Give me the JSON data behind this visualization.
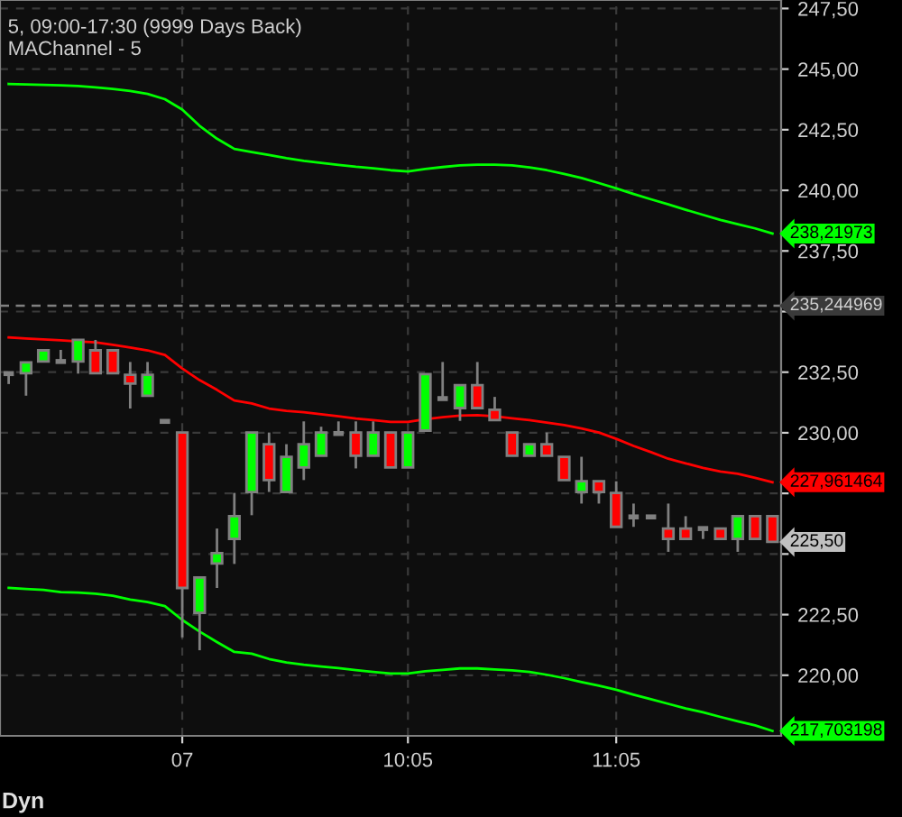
{
  "chart_data": {
    "type": "candlestick",
    "title": "5, 09:00-17:30 (9999 Days Back)",
    "subtitle": "MAChannel - 5",
    "categories": [
      null,
      null,
      null,
      null,
      null,
      null,
      null,
      null,
      null,
      null,
      "07",
      null,
      null,
      null,
      null,
      null,
      null,
      null,
      null,
      null,
      null,
      null,
      null,
      "10:05",
      null,
      null,
      null,
      null,
      null,
      null,
      null,
      null,
      null,
      null,
      null,
      "11:05",
      null,
      null,
      null,
      null,
      null,
      null,
      null,
      null,
      null
    ],
    "ohlc": [
      [
        232.44,
        232.44,
        232.01,
        232.44
      ],
      [
        232.46,
        232.9,
        231.53,
        232.9
      ],
      [
        232.94,
        233.4,
        232.94,
        233.4
      ],
      [
        232.94,
        233.42,
        232.94,
        232.94
      ],
      [
        232.94,
        233.83,
        232.44,
        233.83
      ],
      [
        233.4,
        233.83,
        232.46,
        232.46
      ],
      [
        233.4,
        233.4,
        232.46,
        232.46
      ],
      [
        232.39,
        232.92,
        231.0,
        232.03
      ],
      [
        231.53,
        232.92,
        231.53,
        232.39
      ],
      [
        230.47,
        230.47,
        230.47,
        230.47
      ],
      [
        230.01,
        230.01,
        221.56,
        223.6
      ],
      [
        222.57,
        224.03,
        221.03,
        224.03
      ],
      [
        224.61,
        226.05,
        223.6,
        225.04
      ],
      [
        225.62,
        227.52,
        224.59,
        226.56
      ],
      [
        227.56,
        230.01,
        226.6,
        230.01
      ],
      [
        229.53,
        230.01,
        227.56,
        228.05
      ],
      [
        227.56,
        229.53,
        227.56,
        229.01
      ],
      [
        228.57,
        230.47,
        228.05,
        229.53
      ],
      [
        229.05,
        230.25,
        229.05,
        230.01
      ],
      [
        229.97,
        230.47,
        229.97,
        229.97
      ],
      [
        230.01,
        230.47,
        228.53,
        229.05
      ],
      [
        229.05,
        230.47,
        229.05,
        230.01
      ],
      [
        230.01,
        230.01,
        228.57,
        228.57
      ],
      [
        228.57,
        230.01,
        228.57,
        230.01
      ],
      [
        230.09,
        232.42,
        230.09,
        232.42
      ],
      [
        231.41,
        232.92,
        231.41,
        231.41
      ],
      [
        231.02,
        231.96,
        230.49,
        231.96
      ],
      [
        231.96,
        232.92,
        231.02,
        231.02
      ],
      [
        230.95,
        231.48,
        230.52,
        230.52
      ],
      [
        230.01,
        230.01,
        229.05,
        229.05
      ],
      [
        229.05,
        229.53,
        229.05,
        229.53
      ],
      [
        229.53,
        230.01,
        229.05,
        229.05
      ],
      [
        229.01,
        229.01,
        228.05,
        228.05
      ],
      [
        227.56,
        229.01,
        227.08,
        228.0
      ],
      [
        228.0,
        228.0,
        227.08,
        227.56
      ],
      [
        227.52,
        228.0,
        226.12,
        226.12
      ],
      [
        226.53,
        227.08,
        226.12,
        226.53
      ],
      [
        226.53,
        226.53,
        226.53,
        226.53
      ],
      [
        226.05,
        227.08,
        225.09,
        225.62
      ],
      [
        226.05,
        226.56,
        225.62,
        225.62
      ],
      [
        226.05,
        226.05,
        225.62,
        226.05
      ],
      [
        226.05,
        226.05,
        225.62,
        225.62
      ],
      [
        225.62,
        226.56,
        225.09,
        226.56
      ],
      [
        226.56,
        226.56,
        225.62,
        225.62
      ],
      [
        226.56,
        226.56,
        225.5,
        225.5
      ]
    ],
    "colors": [
      "#808080",
      "#00ff00",
      "#00ff00",
      "#808080",
      "#00ff00",
      "#ff0000",
      "#ff0000",
      "#ff0000",
      "#00ff00",
      "#808080",
      "#ff0000",
      "#00ff00",
      "#00ff00",
      "#00ff00",
      "#00ff00",
      "#ff0000",
      "#00ff00",
      "#00ff00",
      "#00ff00",
      "#808080",
      "#ff0000",
      "#00ff00",
      "#ff0000",
      "#00ff00",
      "#00ff00",
      "#808080",
      "#00ff00",
      "#ff0000",
      "#ff0000",
      "#ff0000",
      "#00ff00",
      "#ff0000",
      "#ff0000",
      "#00ff00",
      "#ff0000",
      "#ff0000",
      "#808080",
      "#808080",
      "#ff0000",
      "#ff0000",
      "#808080",
      "#ff0000",
      "#00ff00",
      "#ff0000",
      "#ff0000"
    ],
    "series": [
      {
        "type": "line",
        "color": "#00ff00",
        "values": [
          244.39,
          244.37,
          244.35,
          244.33,
          244.3,
          244.25,
          244.18,
          244.1,
          243.98,
          243.76,
          243.33,
          242.66,
          242.13,
          241.71,
          241.58,
          241.46,
          241.33,
          241.22,
          241.13,
          241.05,
          240.97,
          240.91,
          240.83,
          240.78,
          240.88,
          240.96,
          241.03,
          241.06,
          241.06,
          241.03,
          240.95,
          240.83,
          240.68,
          240.51,
          240.3,
          240.08,
          239.85,
          239.63,
          239.42,
          239.2,
          238.99,
          238.78,
          238.6,
          238.43,
          238.21973
        ],
        "value_labels": [
          null,
          null,
          null,
          null,
          null,
          null,
          null,
          null,
          null,
          null,
          null,
          null,
          null,
          null,
          null,
          null,
          null,
          null,
          null,
          null,
          null,
          null,
          null,
          null,
          null,
          null,
          null,
          null,
          null,
          null,
          null,
          null,
          null,
          null,
          null,
          null,
          null,
          null,
          null,
          null,
          null,
          null,
          null,
          null,
          "238,21973"
        ]
      },
      {
        "type": "line",
        "color": "#ff0000",
        "values": [
          233.93,
          233.89,
          233.85,
          233.81,
          233.77,
          233.73,
          233.63,
          233.52,
          233.4,
          233.21,
          232.65,
          232.17,
          231.77,
          231.33,
          231.21,
          231.0,
          230.9,
          230.85,
          230.76,
          230.68,
          230.59,
          230.52,
          230.45,
          230.45,
          230.56,
          230.64,
          230.71,
          230.73,
          230.68,
          230.6,
          230.52,
          230.42,
          230.32,
          230.18,
          230.01,
          229.75,
          229.46,
          229.2,
          228.93,
          228.74,
          228.55,
          228.4,
          228.31,
          228.14,
          227.961464
        ],
        "value_labels": [
          null,
          null,
          null,
          null,
          null,
          null,
          null,
          null,
          null,
          null,
          null,
          null,
          null,
          null,
          null,
          null,
          null,
          null,
          null,
          null,
          null,
          null,
          null,
          null,
          null,
          null,
          null,
          null,
          null,
          null,
          null,
          null,
          null,
          null,
          null,
          null,
          null,
          null,
          null,
          null,
          null,
          null,
          null,
          null,
          "227,961464"
        ]
      },
      {
        "type": "line",
        "color": "#00ff00",
        "values": [
          223.6,
          223.56,
          223.52,
          223.43,
          223.41,
          223.36,
          223.28,
          223.12,
          223.02,
          222.85,
          222.28,
          221.8,
          221.37,
          220.96,
          220.89,
          220.67,
          220.53,
          220.43,
          220.36,
          220.29,
          220.21,
          220.14,
          220.07,
          220.07,
          220.16,
          220.22,
          220.28,
          220.28,
          220.24,
          220.2,
          220.14,
          220.02,
          219.88,
          219.72,
          219.57,
          219.4,
          219.2,
          219.01,
          218.82,
          218.63,
          218.47,
          218.28,
          218.1,
          217.93,
          217.703198
        ],
        "value_labels": [
          null,
          null,
          null,
          null,
          null,
          null,
          null,
          null,
          null,
          null,
          null,
          null,
          null,
          null,
          null,
          null,
          null,
          null,
          null,
          null,
          null,
          null,
          null,
          null,
          null,
          null,
          null,
          null,
          null,
          null,
          null,
          null,
          null,
          null,
          null,
          null,
          null,
          null,
          null,
          null,
          null,
          null,
          null,
          null,
          "217,703198"
        ]
      }
    ],
    "ylim": [
      217.5,
      247.85
    ],
    "yticks": [
      {
        "value": 220,
        "label": "220,00"
      },
      {
        "value": 222.5,
        "label": "222,50"
      },
      {
        "value": 225,
        "label": null
      },
      {
        "value": 227.5,
        "label": null
      },
      {
        "value": 230,
        "label": "230,00"
      },
      {
        "value": 232.5,
        "label": "232,50"
      },
      {
        "value": 235,
        "label": null
      },
      {
        "value": 237.5,
        "label": "237,50"
      },
      {
        "value": 240,
        "label": "240,00"
      },
      {
        "value": 242.5,
        "label": "242,50"
      },
      {
        "value": 245,
        "label": "245,00"
      },
      {
        "value": 247.5,
        "label": "247,50"
      }
    ],
    "ref_lines": [
      {
        "axis": "y",
        "value": 235.244969,
        "label": "235,244969",
        "color": "#808080",
        "line_style": "dashed"
      }
    ],
    "annotations": [
      "225,50",
      "Dyn"
    ],
    "grid": true
  }
}
